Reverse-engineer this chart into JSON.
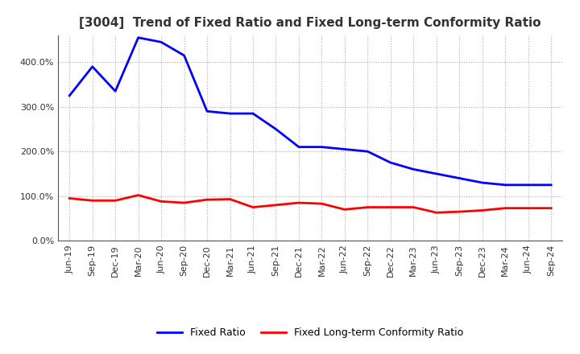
{
  "title": "[3004]  Trend of Fixed Ratio and Fixed Long-term Conformity Ratio",
  "labels": [
    "Jun-19",
    "Sep-19",
    "Dec-19",
    "Mar-20",
    "Jun-20",
    "Sep-20",
    "Dec-20",
    "Mar-21",
    "Jun-21",
    "Sep-21",
    "Dec-21",
    "Mar-22",
    "Jun-22",
    "Sep-22",
    "Dec-22",
    "Mar-23",
    "Jun-23",
    "Sep-23",
    "Dec-23",
    "Mar-24",
    "Jun-24",
    "Sep-24"
  ],
  "fixed_ratio": [
    325,
    390,
    335,
    455,
    445,
    415,
    290,
    285,
    285,
    250,
    210,
    210,
    205,
    200,
    175,
    160,
    150,
    140,
    130,
    125,
    125,
    125
  ],
  "fixed_lt_ratio": [
    95,
    90,
    90,
    102,
    88,
    85,
    92,
    93,
    75,
    80,
    85,
    83,
    70,
    75,
    75,
    75,
    63,
    65,
    68,
    73,
    73,
    73
  ],
  "ylim": [
    0,
    460
  ],
  "yticks": [
    0,
    100,
    200,
    300,
    400
  ],
  "line_color_fixed": "#0000FF",
  "line_color_lt": "#FF0000",
  "bg_color": "#FFFFFF",
  "plot_bg_color": "#FFFFFF",
  "grid_color": "#999999",
  "title_color": "#333333",
  "legend_fixed": "Fixed Ratio",
  "legend_lt": "Fixed Long-term Conformity Ratio",
  "title_fontsize": 11,
  "tick_fontsize": 8,
  "legend_fontsize": 9
}
